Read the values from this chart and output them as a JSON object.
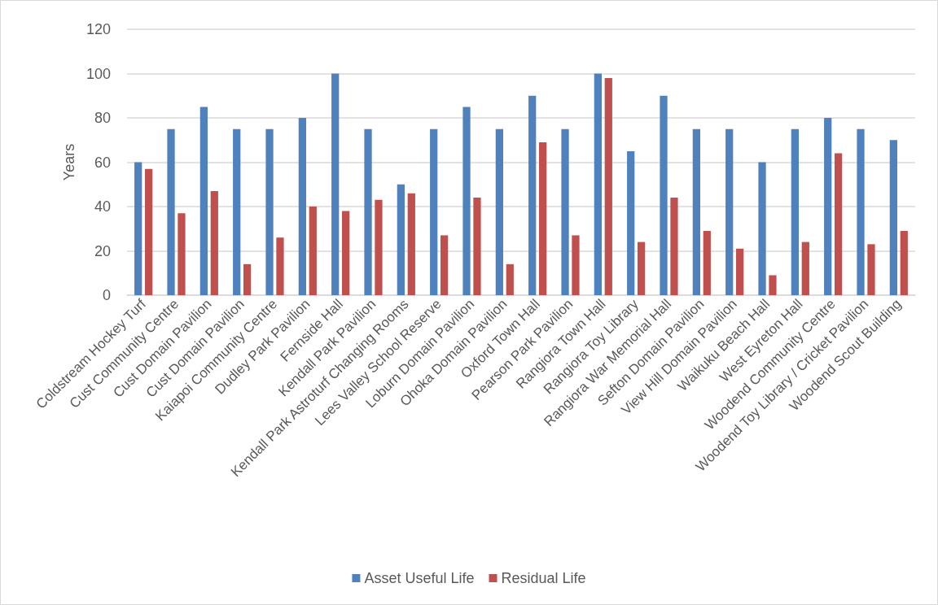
{
  "chart_data": {
    "type": "bar",
    "ylabel": "Years",
    "categories": [
      "Coldstream Hockey Turf",
      "Cust Community Centre",
      "Cust Domain Pavilion",
      "Cust Domain Pavilion",
      "Kaiapoi Community Centre",
      "Dudley Park Pavilion",
      "Fernside Hall",
      "Kendall Park Pavilion",
      "Kendall Park Astroturf Changing Rooms",
      "Lees Valley School Reserve",
      "Loburn Domain Pavilion",
      "Ohoka Domain Pavilion",
      "Oxford Town Hall",
      "Pearson Park Pavilion",
      "Rangiora Town Hall",
      "Rangiora Toy Library",
      "Rangiora War Memorial Hall",
      "Sefton Domain Pavilion",
      "View Hill Domain Pavilion",
      "Waikuku Beach Hall",
      "West Eyreton Hall",
      "Woodend Community Centre",
      "Woodend Toy Library / Cricket Pavilion",
      "Woodend Scout Building"
    ],
    "series": [
      {
        "name": "Asset Useful Life",
        "color": "#4f81bd",
        "values": [
          60,
          75,
          85,
          75,
          75,
          80,
          100,
          75,
          50,
          75,
          85,
          75,
          90,
          75,
          100,
          65,
          90,
          75,
          75,
          60,
          75,
          80,
          75,
          70
        ]
      },
      {
        "name": "Residual Life",
        "color": "#c0504d",
        "values": [
          57,
          37,
          47,
          14,
          26,
          40,
          38,
          43,
          46,
          27,
          44,
          14,
          69,
          27,
          98,
          24,
          44,
          29,
          21,
          9,
          24,
          64,
          23,
          29
        ]
      }
    ],
    "ylim": [
      0,
      120
    ],
    "yticks": [
      0,
      20,
      40,
      60,
      80,
      100,
      120
    ],
    "grid": "y",
    "legend": "bottom"
  }
}
